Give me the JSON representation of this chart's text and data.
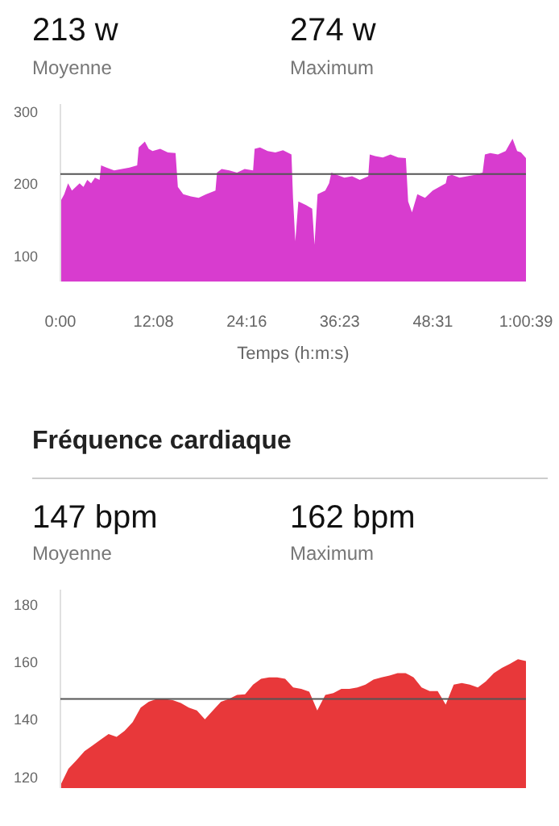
{
  "chart_data": [
    {
      "type": "area",
      "xlabel": "Temps (h:m:s)",
      "annotations": [
        "213 w",
        "Moyenne",
        "274 w",
        "Maximum"
      ],
      "x": [
        0,
        0.5,
        1,
        1.5,
        2,
        2.5,
        3,
        3.5,
        4,
        4.5,
        5.1,
        5.3,
        6,
        7,
        8,
        9,
        10,
        10.2,
        11,
        11.5,
        12,
        13,
        14,
        15,
        15.3,
        16,
        17,
        18,
        19,
        20.2,
        20.4,
        21,
        22,
        23,
        24,
        25.1,
        25.3,
        26,
        27,
        28,
        29,
        30.1,
        30.3,
        30.6,
        31,
        32,
        32.8,
        33.1,
        33.5,
        34.5,
        35,
        35.3,
        36,
        37,
        38,
        39,
        40.1,
        40.3,
        41,
        42,
        43,
        44,
        45,
        45.3,
        45.8,
        46.5,
        47.5,
        48.5,
        50.2,
        50.4,
        51,
        52,
        53,
        54,
        55,
        55.3,
        56,
        57,
        58,
        58.9,
        59.5,
        60,
        60.65
      ],
      "series": [
        {
          "color": "#d83ccf",
          "values": [
            175,
            185,
            200,
            190,
            195,
            200,
            195,
            205,
            200,
            208,
            205,
            225,
            222,
            218,
            220,
            222,
            225,
            250,
            258,
            248,
            245,
            248,
            243,
            242,
            195,
            185,
            182,
            180,
            185,
            190,
            215,
            220,
            218,
            215,
            220,
            218,
            248,
            250,
            245,
            243,
            246,
            240,
            180,
            120,
            175,
            170,
            165,
            115,
            185,
            190,
            200,
            215,
            212,
            208,
            210,
            205,
            210,
            240,
            238,
            236,
            240,
            236,
            235,
            175,
            160,
            185,
            180,
            190,
            200,
            210,
            212,
            208,
            210,
            212,
            215,
            240,
            242,
            240,
            245,
            262,
            245,
            243,
            235
          ]
        }
      ],
      "xlim": [
        0,
        60.65
      ],
      "xticks": [
        {
          "value": 0,
          "label": "0:00"
        },
        {
          "value": 12.13,
          "label": "12:08"
        },
        {
          "value": 24.27,
          "label": "24:16"
        },
        {
          "value": 36.38,
          "label": "36:23"
        },
        {
          "value": 48.52,
          "label": "48:31"
        },
        {
          "value": 60.65,
          "label": "1:00:39"
        }
      ],
      "ylim": [
        64,
        310
      ],
      "yticks": [
        100,
        200,
        300
      ],
      "ref_lines": [
        {
          "axis": "y",
          "value": 213,
          "label": null,
          "color": "#555555"
        }
      ]
    },
    {
      "type": "area",
      "title": "Fréquence cardiaque",
      "annotations": [
        "147 bpm",
        "Moyenne",
        "162 bpm",
        "Maximum"
      ],
      "categories": [
        null,
        null,
        null,
        null,
        null,
        null,
        null,
        null,
        null,
        null,
        null,
        null,
        null,
        null,
        null,
        null,
        null,
        null,
        null,
        null,
        null,
        null,
        null,
        null,
        null,
        null,
        null,
        null,
        null,
        null,
        null,
        null,
        null,
        null,
        null,
        null,
        null,
        null,
        null,
        null,
        null,
        null,
        null,
        null,
        null,
        null,
        null,
        null,
        null,
        null,
        null,
        null,
        null,
        null,
        null,
        null,
        null,
        null,
        null
      ],
      "series": [
        {
          "color": "#e8383a",
          "values": [
            117,
            122.7,
            125.7,
            128.8,
            130.8,
            132.8,
            134.8,
            133.8,
            135.9,
            138.9,
            144,
            146,
            147,
            147,
            146.6,
            145.6,
            144,
            143,
            139.9,
            143,
            146,
            147,
            148.4,
            148.6,
            152,
            154,
            154.5,
            154.5,
            154,
            151,
            150.5,
            149.5,
            143,
            148.4,
            149,
            150.5,
            150.5,
            151,
            152,
            153.7,
            154.5,
            155.1,
            156,
            156,
            154.5,
            151,
            149.7,
            149.7,
            145,
            152,
            152.5,
            152,
            151,
            153.1,
            156,
            157.8,
            159.2,
            160.8,
            160.2
          ]
        }
      ],
      "ylim": [
        116,
        185
      ],
      "yticks": [
        120,
        140,
        160,
        180
      ],
      "tick_labels": "y",
      "ref_lines": [
        {
          "axis": "y",
          "value": 147,
          "label": null,
          "color": "#555555"
        }
      ]
    }
  ]
}
